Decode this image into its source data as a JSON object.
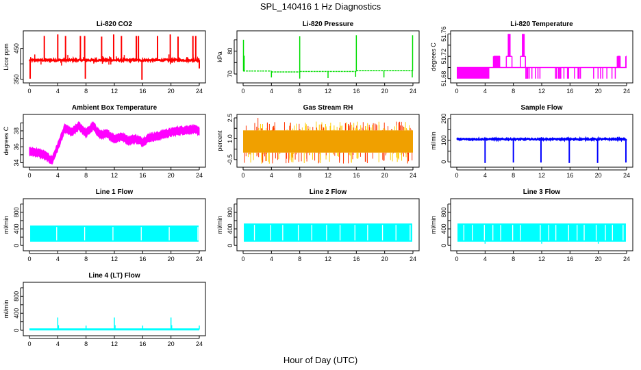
{
  "title": "SPL_140416  1 Hz Diagnostics",
  "xlabel": "Hour of Day (UTC)",
  "chart_data": [
    {
      "type": "line",
      "title": "Li-820 CO2",
      "ylabel": "Licor ppm",
      "color": "#ff0000",
      "xlim": [
        0,
        24
      ],
      "ylim": [
        345,
        500
      ],
      "xticks": [
        0,
        4,
        8,
        12,
        16,
        20,
        24
      ],
      "yticks": [
        350,
        400,
        450
      ],
      "ytick_labels": [
        "350",
        "",
        "450"
      ],
      "baseline": 412,
      "noise": 3,
      "spikes_up": [
        [
          2.1,
          490
        ],
        [
          4.0,
          495
        ],
        [
          5.1,
          490
        ],
        [
          7.2,
          490
        ],
        [
          7.8,
          490
        ],
        [
          10.2,
          488
        ],
        [
          11.9,
          495
        ],
        [
          13.0,
          490
        ],
        [
          15.1,
          490
        ],
        [
          15.4,
          490
        ],
        [
          18.1,
          490
        ],
        [
          19.9,
          495
        ],
        [
          21.0,
          488
        ],
        [
          23.1,
          490
        ],
        [
          23.5,
          490
        ]
      ],
      "spikes_down": [
        [
          0.1,
          352
        ],
        [
          7.9,
          352
        ],
        [
          15.9,
          348
        ],
        [
          24.0,
          385
        ]
      ],
      "end_hour": 24.0
    },
    {
      "type": "line",
      "title": "Li-820 Pressure",
      "ylabel": "kPa",
      "color": "#00dd00",
      "xlim": [
        0,
        24
      ],
      "ylim": [
        67,
        88
      ],
      "xticks": [
        0,
        4,
        8,
        12,
        16,
        20,
        24
      ],
      "yticks": [
        70,
        75,
        80,
        85
      ],
      "ytick_labels": [
        "70",
        "",
        "80",
        ""
      ],
      "segments": [
        [
          0,
          4,
          71.3
        ],
        [
          4,
          8,
          70.9
        ],
        [
          8,
          16,
          71.1
        ],
        [
          16,
          24,
          71.5
        ]
      ],
      "noise": 0.15,
      "spikes_up": [
        [
          0.05,
          85
        ],
        [
          0.15,
          78
        ],
        [
          8.0,
          86.5
        ],
        [
          16.0,
          87
        ],
        [
          23.95,
          87
        ]
      ],
      "spikes_down": [
        [
          4.0,
          68.5
        ],
        [
          8.0,
          68
        ],
        [
          12.0,
          68.2
        ],
        [
          15.9,
          68.8
        ],
        [
          19.9,
          68.5
        ],
        [
          23.9,
          68.5
        ]
      ],
      "end_hour": 24.0
    },
    {
      "type": "line",
      "title": "Li-820 Temperature",
      "ylabel": "degrees C",
      "color": "#ff00ff",
      "xlim": [
        0,
        24
      ],
      "ylim": [
        51.676,
        51.762
      ],
      "xticks": [
        0,
        4,
        8,
        12,
        16,
        20,
        24
      ],
      "yticks": [
        51.68,
        51.7,
        51.72,
        51.74,
        51.76
      ],
      "ytick_labels": [
        "51.68",
        "",
        "51.72",
        "",
        "51.76"
      ],
      "levels": [
        51.68,
        51.7,
        51.72,
        51.74,
        51.76
      ],
      "baseline": 51.7,
      "states": [
        [
          0,
          4.6,
          "flicker_low"
        ],
        [
          4.6,
          5.2,
          "base"
        ],
        [
          5.2,
          6.1,
          "flicker_up"
        ],
        [
          6.1,
          7.0,
          "base"
        ],
        [
          7.0,
          7.8,
          "high"
        ],
        [
          7.8,
          9.0,
          "base"
        ],
        [
          9.0,
          9.7,
          "high"
        ],
        [
          9.7,
          22.7,
          "base_dips"
        ],
        [
          22.7,
          23.1,
          "flicker_up"
        ],
        [
          23.1,
          23.9,
          "base"
        ],
        [
          23.9,
          24.0,
          "flicker_up"
        ]
      ],
      "end_hour": 24.0
    },
    {
      "type": "line",
      "title": "Ambient Box Temperature",
      "ylabel": "degrees C",
      "color": "#ff00ff",
      "xlim": [
        0,
        24
      ],
      "ylim": [
        33.7,
        39.8
      ],
      "xticks": [
        0,
        4,
        8,
        12,
        16,
        20,
        24
      ],
      "yticks": [
        34,
        35,
        36,
        37,
        38,
        39
      ],
      "ytick_labels": [
        "34",
        "",
        "36",
        "",
        "38",
        ""
      ],
      "trend_hours": [
        0,
        1,
        2,
        3.2,
        4,
        5,
        6,
        7,
        8,
        9,
        10,
        11,
        12,
        13,
        14,
        15,
        16,
        17,
        18,
        19,
        20,
        21,
        22,
        23,
        24
      ],
      "trend_values": [
        35.4,
        35.3,
        35.0,
        34.3,
        36.0,
        38.3,
        37.8,
        38.6,
        37.7,
        38.6,
        37.5,
        37.6,
        37.0,
        37.3,
        36.8,
        37.0,
        36.6,
        37.2,
        37.3,
        37.6,
        37.8,
        38.0,
        38.1,
        38.2,
        38.0
      ],
      "band_width": 0.9,
      "end_hour": 24.0
    },
    {
      "type": "line",
      "title": "Gas Stream RH",
      "ylabel": "percent",
      "color": "#ffcc00",
      "color2": "#ff3300",
      "xlim": [
        0,
        24
      ],
      "ylim": [
        -0.9,
        2.6
      ],
      "xticks": [
        0,
        4,
        8,
        12,
        16,
        20,
        24
      ],
      "yticks": [
        -0.5,
        0.25,
        1.0,
        1.75,
        2.5
      ],
      "ytick_labels": [
        "-0.5",
        "",
        "1.0",
        "",
        "2.5"
      ],
      "core_range": [
        0.0,
        1.6
      ],
      "spike_range": [
        -0.8,
        2.5
      ],
      "end_hour": 24.0
    },
    {
      "type": "line",
      "title": "Sample Flow",
      "ylabel": "ml/min",
      "color": "#0000ff",
      "xlim": [
        0,
        24
      ],
      "ylim": [
        -15,
        210
      ],
      "xticks": [
        0,
        4,
        8,
        12,
        16,
        20,
        24
      ],
      "yticks": [
        0,
        50,
        100,
        150,
        200
      ],
      "ytick_labels": [
        "0",
        "",
        "100",
        "",
        "200"
      ],
      "baseline": 105,
      "noise": 3,
      "drops": [
        [
          4.0,
          -5
        ],
        [
          8.0,
          -3
        ],
        [
          11.9,
          -3
        ],
        [
          15.9,
          -5
        ],
        [
          19.9,
          -5
        ],
        [
          23.9,
          -3
        ]
      ],
      "end_hour": 24.0
    },
    {
      "type": "line",
      "title": "Line 1 Flow",
      "ylabel": "ml/min",
      "color": "#00ffff",
      "xlim": [
        0,
        24
      ],
      "ylim": [
        -80,
        1080
      ],
      "xticks": [
        0,
        4,
        8,
        12,
        16,
        20,
        24
      ],
      "yticks": [
        0,
        200,
        400,
        600,
        800,
        1000
      ],
      "ytick_labels": [
        "0",
        "",
        "400",
        "",
        "800",
        ""
      ],
      "band": [
        90,
        480
      ],
      "gaps": [
        3.85,
        7.8,
        11.8,
        15.8,
        19.75,
        23.8
      ],
      "end_hour": 24.0
    },
    {
      "type": "line",
      "title": "Line 2 Flow",
      "ylabel": "ml/min",
      "color": "#00ffff",
      "xlim": [
        0,
        24
      ],
      "ylim": [
        -80,
        1080
      ],
      "xticks": [
        0,
        4,
        8,
        12,
        16,
        20,
        24
      ],
      "yticks": [
        0,
        200,
        400,
        600,
        800,
        1000
      ],
      "ytick_labels": [
        "0",
        "",
        "400",
        "",
        "800",
        ""
      ],
      "band": [
        90,
        530
      ],
      "gaps": [
        1.6,
        3.9,
        5.6,
        7.8,
        9.7,
        11.8,
        13.7,
        15.8,
        17.6,
        19.7,
        21.6,
        23.6
      ],
      "end_hour": 24.0
    },
    {
      "type": "line",
      "title": "Line 3 Flow",
      "ylabel": "ml/min",
      "color": "#00ffff",
      "xlim": [
        0,
        24
      ],
      "ylim": [
        -80,
        1080
      ],
      "xticks": [
        0,
        4,
        8,
        12,
        16,
        20,
        24
      ],
      "yticks": [
        0,
        200,
        400,
        600,
        800,
        1000
      ],
      "ytick_labels": [
        "0",
        "",
        "400",
        "",
        "800",
        ""
      ],
      "band": [
        90,
        530
      ],
      "gaps": [
        1.0,
        2.2,
        3.9,
        5.1,
        6.2,
        7.9,
        9.0,
        11.8,
        13.0,
        14.0,
        15.8,
        17.0,
        18.0,
        19.7,
        21.0,
        22.0,
        23.5
      ],
      "dips": [
        [
          4.0,
          40
        ],
        [
          12.0,
          40
        ],
        [
          20.0,
          40
        ]
      ],
      "end_hour": 24.0
    },
    {
      "type": "line",
      "title": "Line 4 (LT) Flow",
      "ylabel": "ml/min",
      "color": "#00ffff",
      "xlim": [
        0,
        24
      ],
      "ylim": [
        -80,
        1080
      ],
      "xticks": [
        0,
        4,
        8,
        12,
        16,
        20,
        24
      ],
      "yticks": [
        0,
        200,
        400,
        600,
        800,
        1000
      ],
      "ytick_labels": [
        "0",
        "",
        "400",
        "",
        "800",
        ""
      ],
      "baseline": 20,
      "spikes_up": [
        [
          4.0,
          300
        ],
        [
          4.1,
          120
        ],
        [
          8.0,
          110
        ],
        [
          12.0,
          300
        ],
        [
          12.1,
          120
        ],
        [
          16.0,
          110
        ],
        [
          20.0,
          300
        ],
        [
          20.1,
          120
        ],
        [
          24.0,
          110
        ]
      ],
      "end_hour": 24.0
    }
  ]
}
